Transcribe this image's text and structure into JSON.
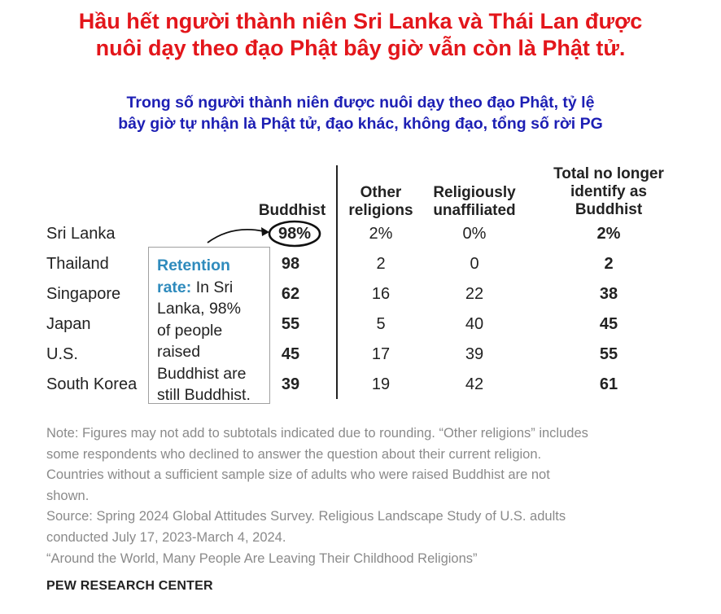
{
  "title": [
    "Hầu hết người thành niên Sri Lanka và Thái Lan được",
    "nuôi dạy theo đạo Phật bây giờ vẫn còn là Phật tử."
  ],
  "subtitle": [
    "Trong số người thành niên được nuôi dạy theo đạo Phật, tỷ lệ",
    "bây giờ tự nhận là Phật tử, đạo khác, không đạo, tổng số rời PG"
  ],
  "chart_data": {
    "type": "table",
    "columns": [
      {
        "key": "buddhist",
        "header": [
          "Buddhist"
        ]
      },
      {
        "key": "other",
        "header": [
          "Other",
          "religions"
        ]
      },
      {
        "key": "unaffiliated",
        "header": [
          "Religiously",
          "unaffiliated"
        ]
      },
      {
        "key": "total",
        "header": [
          "Total no longer",
          "identify as",
          "Buddhist"
        ]
      }
    ],
    "rows": [
      {
        "country": "Sri Lanka",
        "buddhist": "98%",
        "other": "2%",
        "unaffiliated": "0%",
        "total": "2%"
      },
      {
        "country": "Thailand",
        "buddhist": "98",
        "other": "2",
        "unaffiliated": "0",
        "total": "2"
      },
      {
        "country": "Singapore",
        "buddhist": "62",
        "other": "16",
        "unaffiliated": "22",
        "total": "38"
      },
      {
        "country": "Japan",
        "buddhist": "55",
        "other": "5",
        "unaffiliated": "40",
        "total": "45"
      },
      {
        "country": "U.S.",
        "buddhist": "45",
        "other": "17",
        "unaffiliated": "39",
        "total": "55"
      },
      {
        "country": "South Korea",
        "buddhist": "39",
        "other": "19",
        "unaffiliated": "42",
        "total": "61"
      }
    ],
    "annotation": {
      "highlight": "Retention",
      "highlight2": "rate:",
      "lines": [
        " In Sri",
        "Lanka, 98%",
        "of people",
        "raised",
        "Buddhist are",
        "still Buddhist."
      ]
    }
  },
  "notes": [
    "Note: Figures may not add to subtotals indicated due to rounding. “Other religions” includes",
    "some respondents who declined to answer the question about their current religion.",
    "Countries without a sufficient sample size of adults who were raised Buddhist are not",
    "shown.",
    "Source: Spring 2024 Global Attitudes Survey. Religious Landscape Study of U.S. adults",
    "conducted July 17, 2023-March 4, 2024.",
    "“Around the World, Many People Are Leaving Their Childhood Religions”"
  ],
  "brand": "PEW RESEARCH CENTER",
  "colors": {
    "title": "#e3161b",
    "subtitle": "#1d1fb4",
    "annotation_highlight": "#2f8bbd",
    "notes": "#8a8a8a"
  }
}
